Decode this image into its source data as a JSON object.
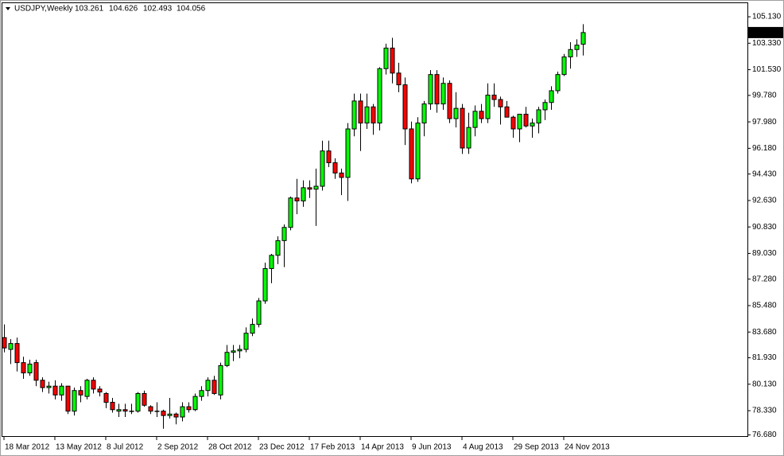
{
  "chart_data": {
    "type": "candlestick",
    "title": "USDJPY,Weekly",
    "categories": [
      "18 Mar 2012",
      null,
      null,
      null,
      null,
      null,
      null,
      null,
      "13 May 2012",
      null,
      null,
      null,
      null,
      null,
      null,
      null,
      "8 Jul 2012",
      null,
      null,
      null,
      null,
      null,
      null,
      null,
      "2 Sep 2012",
      null,
      null,
      null,
      null,
      null,
      null,
      null,
      "28 Oct 2012",
      null,
      null,
      null,
      null,
      null,
      null,
      null,
      "23 Dec 2012",
      null,
      null,
      null,
      null,
      null,
      null,
      null,
      "17 Feb 2013",
      null,
      null,
      null,
      null,
      null,
      null,
      null,
      "14 Apr 2013",
      null,
      null,
      null,
      null,
      null,
      null,
      null,
      "9 Jun 2013",
      null,
      null,
      null,
      null,
      null,
      null,
      null,
      "4 Aug 2013",
      null,
      null,
      null,
      null,
      null,
      null,
      null,
      "29 Sep 2013",
      null,
      null,
      null,
      null,
      null,
      null,
      null,
      "24 Nov 2013",
      null,
      null,
      null
    ],
    "open": [
      83.3,
      82.5,
      82.9,
      81.6,
      80.9,
      81.6,
      80.4,
      79.9,
      80.0,
      79.4,
      80.0,
      78.3,
      79.7,
      79.3,
      80.4,
      79.8,
      79.5,
      78.9,
      78.3,
      78.4,
      78.3,
      78.3,
      79.5,
      78.6,
      78.3,
      78.3,
      78.0,
      78.1,
      77.9,
      78.6,
      78.4,
      79.3,
      79.7,
      80.4,
      79.4,
      81.4,
      82.3,
      82.4,
      82.5,
      83.6,
      84.2,
      85.8,
      88.0,
      88.9,
      89.9,
      90.8,
      92.8,
      92.6,
      93.5,
      93.4,
      93.6,
      96.0,
      95.2,
      94.5,
      94.2,
      97.5,
      99.4,
      97.9,
      99.0,
      97.9,
      101.6,
      103.0,
      101.3,
      100.5,
      97.5,
      94.1,
      97.9,
      99.2,
      101.2,
      99.2,
      100.6,
      98.2,
      98.9,
      96.2,
      97.6,
      98.7,
      98.2,
      99.8,
      99.5,
      99.0,
      98.3,
      97.5,
      98.5,
      97.7,
      97.9,
      98.8,
      99.3,
      100.1,
      101.2,
      102.4,
      102.9,
      103.261
    ],
    "high": [
      84.2,
      83.2,
      83.3,
      82.0,
      81.8,
      81.8,
      80.6,
      80.3,
      80.4,
      80.2,
      80.0,
      79.9,
      80.0,
      80.5,
      80.6,
      80.0,
      79.6,
      79.2,
      78.8,
      78.8,
      78.8,
      79.6,
      79.7,
      78.7,
      78.9,
      78.4,
      79.2,
      78.2,
      78.9,
      78.9,
      79.5,
      80.0,
      80.6,
      80.7,
      81.6,
      82.8,
      82.8,
      82.8,
      84.0,
      84.6,
      86.0,
      88.4,
      89.0,
      90.2,
      91.0,
      92.9,
      94.1,
      94.0,
      94.0,
      94.8,
      96.7,
      96.7,
      95.5,
      94.8,
      97.9,
      99.9,
      99.9,
      99.9,
      99.2,
      101.7,
      103.3,
      103.7,
      102.0,
      101.0,
      98.0,
      98.3,
      99.4,
      101.5,
      101.5,
      101.0,
      100.8,
      100.0,
      99.2,
      98.6,
      99.1,
      99.2,
      100.6,
      100.6,
      99.7,
      99.4,
      98.4,
      98.5,
      99.0,
      98.2,
      99.0,
      99.5,
      100.4,
      101.4,
      102.6,
      103.4,
      103.6,
      104.626
    ],
    "low": [
      82.3,
      81.5,
      81.0,
      80.5,
      80.7,
      80.0,
      79.6,
      79.5,
      79.1,
      79.0,
      78.1,
      78.0,
      78.9,
      79.1,
      79.5,
      79.3,
      78.5,
      78.2,
      77.9,
      77.9,
      78.1,
      78.2,
      78.6,
      78.1,
      77.9,
      77.1,
      77.8,
      77.4,
      77.6,
      78.2,
      78.3,
      79.0,
      79.3,
      79.4,
      79.1,
      81.3,
      81.7,
      81.9,
      82.3,
      83.4,
      84.0,
      85.6,
      87.0,
      88.3,
      88.1,
      90.6,
      91.7,
      92.2,
      92.8,
      90.9,
      93.3,
      94.9,
      94.1,
      93.0,
      92.6,
      97.0,
      96.0,
      97.5,
      97.1,
      97.4,
      101.2,
      100.6,
      100.0,
      96.4,
      93.8,
      93.9,
      97.0,
      98.8,
      98.6,
      98.8,
      97.9,
      97.6,
      95.8,
      95.8,
      97.0,
      97.9,
      97.9,
      99.0,
      97.8,
      98.3,
      96.9,
      96.6,
      97.6,
      96.9,
      97.2,
      98.1,
      98.8,
      99.9,
      101.1,
      101.6,
      102.4,
      102.493
    ],
    "close": [
      82.6,
      82.9,
      81.6,
      80.9,
      81.5,
      80.4,
      79.9,
      80.0,
      79.4,
      80.0,
      78.3,
      79.7,
      79.4,
      80.4,
      79.8,
      79.6,
      78.9,
      78.4,
      78.4,
      78.3,
      78.3,
      79.5,
      78.7,
      78.3,
      78.3,
      78.0,
      78.1,
      77.9,
      78.6,
      78.4,
      79.3,
      79.7,
      80.4,
      79.5,
      81.4,
      82.3,
      82.4,
      82.5,
      83.6,
      84.2,
      85.8,
      88.0,
      88.9,
      89.9,
      90.8,
      92.8,
      92.6,
      93.5,
      93.4,
      93.6,
      96.0,
      95.2,
      94.5,
      94.2,
      97.5,
      99.4,
      97.9,
      99.0,
      97.9,
      101.6,
      103.0,
      101.3,
      100.5,
      97.5,
      94.1,
      97.9,
      99.2,
      101.2,
      99.2,
      100.6,
      98.2,
      98.9,
      96.2,
      97.6,
      98.7,
      98.2,
      99.8,
      99.5,
      99.0,
      98.3,
      97.5,
      98.5,
      97.7,
      97.9,
      98.8,
      99.3,
      100.1,
      101.2,
      102.4,
      102.9,
      103.2,
      104.056
    ],
    "up_color": "#00ff00",
    "down_color": "#ff0000",
    "ylim": [
      76.6,
      106.0
    ],
    "yticks": [
      {
        "value": 76.68,
        "label": "76.680"
      },
      {
        "value": 78.33,
        "label": "78.330"
      },
      {
        "value": 80.13,
        "label": "80.130"
      },
      {
        "value": 81.93,
        "label": "81.930"
      },
      {
        "value": 83.68,
        "label": "83.680"
      },
      {
        "value": 85.48,
        "label": "85.480"
      },
      {
        "value": 87.28,
        "label": "87.280"
      },
      {
        "value": 89.03,
        "label": "89.030"
      },
      {
        "value": 90.83,
        "label": "90.830"
      },
      {
        "value": 92.63,
        "label": "92.630"
      },
      {
        "value": 94.43,
        "label": "94.430"
      },
      {
        "value": 96.18,
        "label": "96.180"
      },
      {
        "value": 97.98,
        "label": "97.980"
      },
      {
        "value": 99.78,
        "label": "99.780"
      },
      {
        "value": 101.53,
        "label": "101.530"
      },
      {
        "value": 103.33,
        "label": "103.330"
      },
      {
        "value": 105.13,
        "label": "105.130"
      }
    ],
    "grid": false
  }
}
